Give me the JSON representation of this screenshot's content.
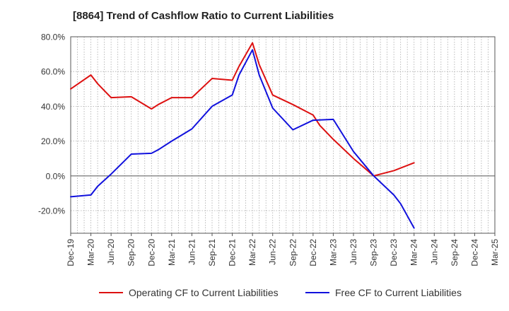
{
  "chart_data": {
    "type": "line",
    "title": "[8864]  Trend of Cashflow Ratio to Current Liabilities",
    "xlabel": "",
    "ylabel": "",
    "ylim": [
      -33,
      80
    ],
    "y_ticks": [
      80,
      60,
      40,
      20,
      0,
      -20
    ],
    "y_tick_labels": [
      "80.0%",
      "60.0%",
      "40.0%",
      "20.0%",
      "0.0%",
      "-20.0%"
    ],
    "x_ticks": [
      "Dec-19",
      "Mar-20",
      "Jun-20",
      "Sep-20",
      "Dec-20",
      "Mar-21",
      "Jun-21",
      "Sep-21",
      "Dec-21",
      "Mar-22",
      "Jun-22",
      "Sep-22",
      "Dec-22",
      "Mar-23",
      "Jun-23",
      "Sep-23",
      "Dec-23",
      "Mar-24",
      "Jun-24",
      "Sep-24",
      "Dec-24",
      "Mar-25"
    ],
    "grid": true,
    "legend_position": "bottom",
    "colors": {
      "operating": "#dd1111",
      "free": "#1111dd",
      "grid": "#aaaaaa"
    },
    "series": [
      {
        "name": "Operating CF to Current Liabilities",
        "color": "#dd1111",
        "points": [
          [
            "Dec-19",
            50.0
          ],
          [
            "Mar-20",
            58.0
          ],
          [
            "Apr-20",
            53.0
          ],
          [
            "Jun-20",
            45.0
          ],
          [
            "Sep-20",
            45.5
          ],
          [
            "Dec-20",
            38.5
          ],
          [
            "Jan-21",
            41.0
          ],
          [
            "Mar-21",
            45.0
          ],
          [
            "Jun-21",
            45.0
          ],
          [
            "Sep-21",
            56.0
          ],
          [
            "Dec-21",
            55.0
          ],
          [
            "Jan-22",
            63.0
          ],
          [
            "Mar-22",
            76.5
          ],
          [
            "Apr-22",
            64.0
          ],
          [
            "Jun-22",
            46.5
          ],
          [
            "Sep-22",
            41.0
          ],
          [
            "Dec-22",
            35.0
          ],
          [
            "Jan-23",
            29.0
          ],
          [
            "Mar-23",
            21.0
          ],
          [
            "Jun-23",
            10.0
          ],
          [
            "Sep-23",
            0.0
          ],
          [
            "Dec-23",
            3.0
          ],
          [
            "Mar-24",
            7.5
          ]
        ]
      },
      {
        "name": "Free CF to Current Liabilities",
        "color": "#1111dd",
        "points": [
          [
            "Dec-19",
            -12.0
          ],
          [
            "Mar-20",
            -11.0
          ],
          [
            "Apr-20",
            -6.0
          ],
          [
            "Jun-20",
            1.0
          ],
          [
            "Sep-20",
            12.5
          ],
          [
            "Dec-20",
            13.0
          ],
          [
            "Jan-21",
            15.0
          ],
          [
            "Mar-21",
            20.0
          ],
          [
            "Jun-21",
            27.0
          ],
          [
            "Sep-21",
            40.0
          ],
          [
            "Dec-21",
            46.5
          ],
          [
            "Jan-22",
            58.0
          ],
          [
            "Mar-22",
            72.5
          ],
          [
            "Apr-22",
            58.0
          ],
          [
            "Jun-22",
            39.0
          ],
          [
            "Sep-22",
            26.5
          ],
          [
            "Dec-22",
            32.0
          ],
          [
            "Mar-23",
            32.5
          ],
          [
            "Jun-23",
            14.0
          ],
          [
            "Sep-23",
            0.0
          ],
          [
            "Dec-23",
            -11.0
          ],
          [
            "Jan-24",
            -16.0
          ],
          [
            "Mar-24",
            -30.0
          ]
        ]
      }
    ]
  }
}
